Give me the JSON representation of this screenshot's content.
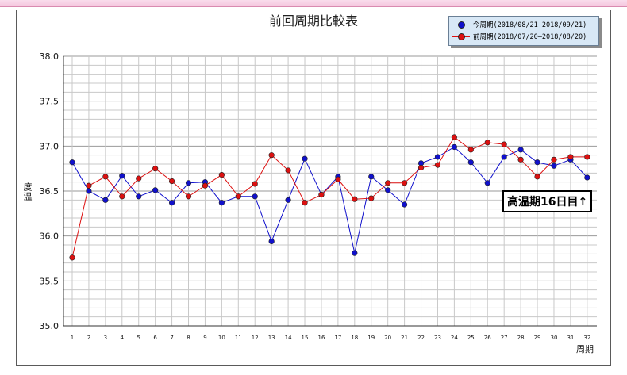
{
  "chart_data": {
    "type": "line",
    "title": "前回周期比較表",
    "xlabel": "周期",
    "ylabel": "度温",
    "x": [
      1,
      2,
      3,
      4,
      5,
      6,
      7,
      8,
      9,
      10,
      11,
      12,
      13,
      14,
      15,
      16,
      17,
      18,
      19,
      20,
      21,
      22,
      23,
      24,
      25,
      26,
      27,
      28,
      29,
      30,
      31,
      32
    ],
    "ylim": [
      35.0,
      38.0
    ],
    "yticks": [
      "35.0",
      "35.5",
      "36.0",
      "36.5",
      "37.0",
      "37.5",
      "38.0"
    ],
    "grid": true,
    "legend_position": "top-right",
    "series": [
      {
        "name": "今周期(2018/08/21—2018/09/21)",
        "color": "#1010cc",
        "values": [
          36.82,
          36.5,
          36.4,
          36.67,
          36.44,
          36.51,
          36.37,
          36.59,
          36.6,
          36.37,
          36.44,
          36.44,
          35.94,
          36.4,
          36.86,
          36.46,
          36.66,
          35.81,
          36.66,
          36.51,
          36.35,
          36.81,
          36.88,
          36.99,
          36.82,
          36.59,
          36.88,
          36.96,
          36.82,
          36.78,
          36.85,
          36.65
        ]
      },
      {
        "name": "前周期(2018/07/20—2018/08/20)",
        "color": "#dd1010",
        "values": [
          35.76,
          36.56,
          36.66,
          36.44,
          36.64,
          36.75,
          36.61,
          36.44,
          36.56,
          36.68,
          36.44,
          36.58,
          36.9,
          36.73,
          36.37,
          36.46,
          36.63,
          36.41,
          36.42,
          36.59,
          36.59,
          36.76,
          36.79,
          37.1,
          36.96,
          37.04,
          37.02,
          36.85,
          36.66,
          36.85,
          36.88,
          36.88
        ]
      }
    ],
    "annotation": "高温期16日目↑"
  }
}
